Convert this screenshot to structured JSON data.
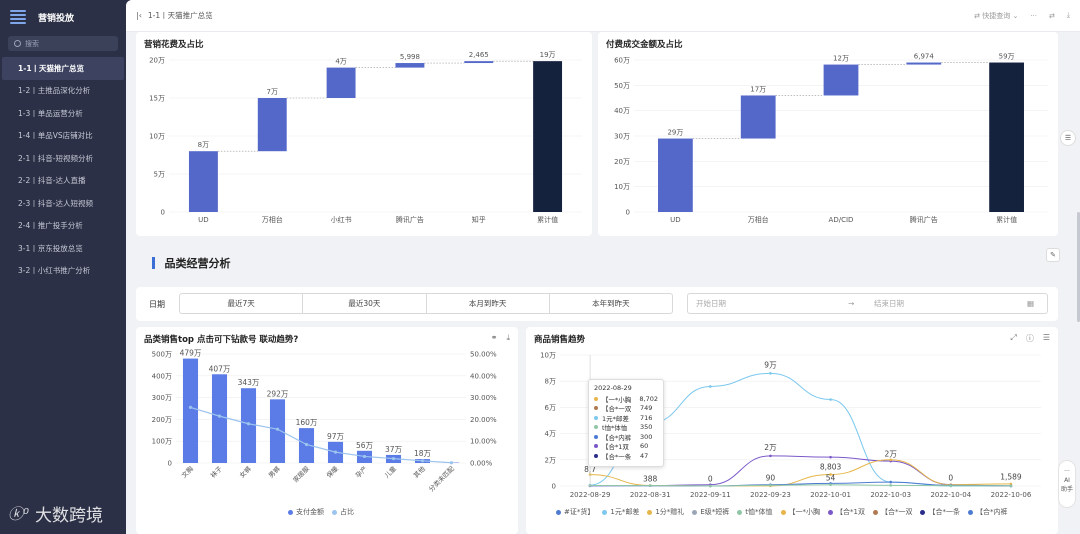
{
  "sidebar": {
    "title": "营销投放",
    "search_placeholder": "搜索",
    "items": [
      {
        "label": "1-1丨天猫推广总览",
        "active": true
      },
      {
        "label": "1-2丨主推品深化分析"
      },
      {
        "label": "1-3丨单品运营分析"
      },
      {
        "label": "1-4丨单品VS店铺对比"
      },
      {
        "label": "2-1丨抖音-短视频分析"
      },
      {
        "label": "2-2丨抖音-达人直播"
      },
      {
        "label": "2-3丨抖音-达人短视频"
      },
      {
        "label": "2-4丨推广投手分析"
      },
      {
        "label": "3-1丨京东投放总览"
      },
      {
        "label": "3-2丨小红书推广分析"
      }
    ],
    "watermark": "大数跨境"
  },
  "topbar": {
    "breadcrumb": "1-1丨天猫推广总览",
    "quick_query": "快捷查询",
    "more": "···"
  },
  "waterfall_left": {
    "title": "营销花费及占比",
    "y_ticks": [
      "0",
      "5万",
      "10万",
      "15万",
      "20万"
    ],
    "categories": [
      "UD",
      "万相台",
      "小红书",
      "腾讯广告",
      "知乎",
      "累计值"
    ],
    "labels": [
      "8万",
      "7万",
      "4万",
      "5,998",
      "2,465",
      "19万"
    ]
  },
  "waterfall_right": {
    "title": "付费成交金额及占比",
    "y_ticks": [
      "0",
      "10万",
      "20万",
      "30万",
      "40万",
      "50万",
      "60万"
    ],
    "categories": [
      "UD",
      "万相台",
      "AD/CID",
      "腾讯广告",
      "累计值"
    ],
    "labels": [
      "29万",
      "17万",
      "12万",
      "6,974",
      "59万"
    ]
  },
  "section": {
    "title": "品类经营分析"
  },
  "filter": {
    "label": "日期",
    "options": [
      "最近7天",
      "最近30天",
      "本月到昨天",
      "本年到昨天"
    ],
    "start_placeholder": "开始日期",
    "end_placeholder": "结束日期"
  },
  "bar_line": {
    "title": "品类销售top 点击可下钻款号 联动趋势?",
    "left_ticks": [
      "0",
      "100万",
      "200万",
      "300万",
      "400万",
      "500万"
    ],
    "right_ticks": [
      "0.00%",
      "10.00%",
      "20.00%",
      "30.00%",
      "40.00%",
      "50.00%"
    ],
    "categories": [
      "文胸",
      "袜子",
      "女裤",
      "男裤",
      "家居服",
      "保暖",
      "孕产",
      "儿童",
      "其他",
      "分类未匹配"
    ],
    "labels": [
      "479万",
      "407万",
      "343万",
      "292万",
      "160万",
      "97万",
      "56万",
      "37万",
      "18万",
      ""
    ],
    "legend": [
      "支付金额",
      "占比"
    ]
  },
  "trend": {
    "title": "商品销售趋势",
    "y_ticks": [
      "0",
      "2万",
      "4万",
      "6万",
      "8万",
      "10万"
    ],
    "x_ticks": [
      "2022-08-29",
      "2022-08-31",
      "2022-09-11",
      "2022-09-23",
      "2022-10-01",
      "2022-10-03",
      "2022-10-04",
      "2022-10-06"
    ],
    "point_labels": [
      "8,7",
      "388",
      "0",
      "9万",
      "2万",
      "90",
      "8,803",
      "54",
      "2万",
      "0",
      "1,589"
    ],
    "legend": [
      "#证*货】",
      "1元*邮差",
      "1分*赠礼",
      "E级*短裤",
      "t恤*体恤",
      "【一*小胸",
      "【合*1双",
      "【合*一双",
      "【合*一条",
      "【合*内裤"
    ],
    "tooltip": {
      "date": "2022-08-29",
      "rows": [
        {
          "name": "【一*小胸",
          "value": "8,702",
          "color": "#e6b64a"
        },
        {
          "name": "【合*一双",
          "value": "749",
          "color": "#b07a52"
        },
        {
          "name": "1元*邮差",
          "value": "716",
          "color": "#7cc8ee"
        },
        {
          "name": "t恤*体恤",
          "value": "350",
          "color": "#8fc7a6"
        },
        {
          "name": "【合*内裤",
          "value": "300",
          "color": "#4e7bd2"
        },
        {
          "name": "【合*1双",
          "value": "60",
          "color": "#7b58c9"
        },
        {
          "name": "【合*一条",
          "value": "47",
          "color": "#2b2d8a"
        }
      ]
    }
  },
  "ai_widget": {
    "line1": "AI",
    "line2": "助手"
  }
}
